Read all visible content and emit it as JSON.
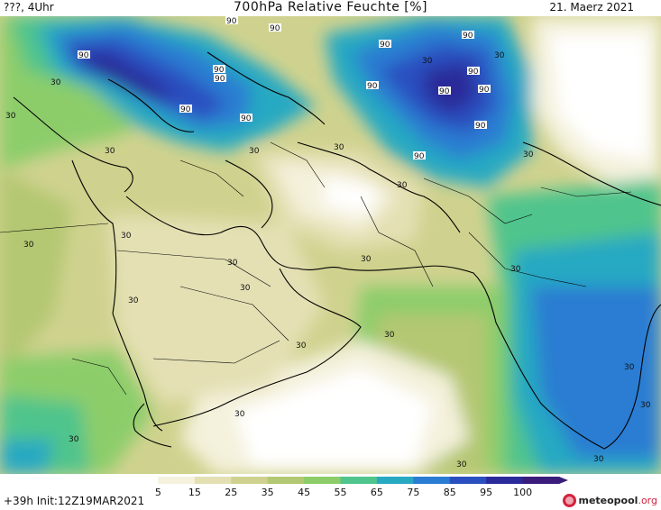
{
  "header": {
    "left": "???, 4Uhr",
    "title": "700hPa Relative Feuchte [%]",
    "date": "21. Maerz 2021"
  },
  "footer": {
    "run": "+39h Init:12Z19MAR2021"
  },
  "colorbar": {
    "ticks": [
      "5",
      "15",
      "25",
      "35",
      "45",
      "55",
      "65",
      "75",
      "85",
      "95",
      "100"
    ],
    "colors": [
      "#ffffff",
      "#f4f1dc",
      "#e4e0b4",
      "#cfd28e",
      "#b4c772",
      "#8ccd6a",
      "#4fc48c",
      "#27a9c2",
      "#2a7dd2",
      "#2a4fc0",
      "#2a2a9a",
      "#3a1d7a"
    ]
  },
  "logo": {
    "name": "meteopool",
    "tld": ".org"
  },
  "contour_labels": [
    "90",
    "90",
    "90",
    "90",
    "90",
    "90",
    "90",
    "90",
    "90",
    "90",
    "90",
    "90",
    "90",
    "90",
    "90",
    "30",
    "30",
    "30",
    "30",
    "30",
    "30",
    "30",
    "30",
    "30",
    "30",
    "30",
    "30",
    "30",
    "30",
    "30",
    "30",
    "30",
    "30",
    "30",
    "30",
    "30",
    "30",
    "30",
    "30"
  ]
}
